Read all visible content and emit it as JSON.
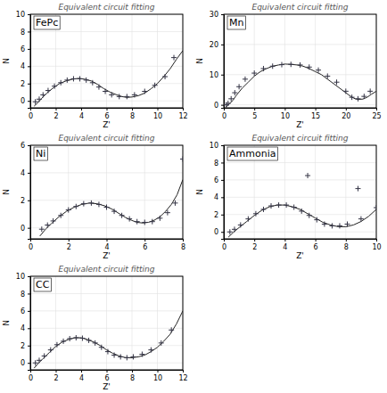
{
  "chart_data": [
    {
      "type": "line",
      "title": "Equivalent circuit fitting",
      "x_label": "Z'",
      "y_label": "N",
      "annotations": [
        "FePc"
      ],
      "xlim": [
        0,
        12
      ],
      "ylim": [
        -0.8,
        10
      ],
      "xticks": [
        0,
        2,
        4,
        6,
        8,
        10,
        12
      ],
      "yticks": [
        0,
        2,
        4,
        6,
        8,
        10
      ],
      "grid": true,
      "series": [
        {
          "type": "line",
          "color": "#222222",
          "line_style": "solid",
          "x": [
            0.3,
            0.6,
            0.9,
            1.3,
            1.8,
            2.3,
            2.8,
            3.3,
            3.8,
            4.3,
            4.8,
            5.3,
            5.8,
            6.3,
            6.8,
            7.2,
            7.6,
            8.0,
            8.5,
            9.0,
            9.5,
            10.0,
            10.5,
            11.0,
            11.5,
            12.0
          ],
          "values": [
            -0.6,
            -0.2,
            0.3,
            0.9,
            1.5,
            2.0,
            2.3,
            2.5,
            2.6,
            2.5,
            2.3,
            1.9,
            1.4,
            1.0,
            0.7,
            0.5,
            0.4,
            0.45,
            0.6,
            0.9,
            1.4,
            2.0,
            2.8,
            3.7,
            4.8,
            5.8
          ]
        },
        {
          "type": "scatter",
          "color": "#333344",
          "marker": "plus",
          "x": [
            0.4,
            0.7,
            1.0,
            1.4,
            1.9,
            2.4,
            2.9,
            3.4,
            3.9,
            4.4,
            4.9,
            5.4,
            5.9,
            6.4,
            7.0,
            7.6,
            8.2,
            9.0,
            9.8,
            10.6,
            11.3
          ],
          "values": [
            -0.1,
            0.2,
            0.7,
            1.2,
            1.7,
            2.1,
            2.4,
            2.55,
            2.55,
            2.4,
            2.1,
            1.6,
            1.1,
            0.7,
            0.5,
            0.5,
            0.7,
            1.1,
            1.8,
            2.8,
            5.0
          ]
        }
      ]
    },
    {
      "type": "line",
      "title": "Equivalent circuit fitting",
      "x_label": "Z'",
      "y_label": "N",
      "annotations": [
        "Mn"
      ],
      "xlim": [
        0,
        25
      ],
      "ylim": [
        -1,
        30
      ],
      "xticks": [
        0,
        5,
        10,
        15,
        20,
        25
      ],
      "yticks": [
        0,
        10,
        20,
        30
      ],
      "grid": true,
      "series": [
        {
          "type": "line",
          "color": "#222222",
          "line_style": "solid",
          "x": [
            0.3,
            0.6,
            1.0,
            1.5,
            2.0,
            3.0,
            4.0,
            5.0,
            6.0,
            7.0,
            8.0,
            9.0,
            10.0,
            11.0,
            12.0,
            13.0,
            14.0,
            15.0,
            16.0,
            17.0,
            18.0,
            19.0,
            20.0,
            20.8,
            21.5,
            22.0,
            22.8,
            23.5,
            24.2,
            25.0
          ],
          "values": [
            -0.8,
            -0.3,
            0.5,
            1.5,
            3.0,
            5.5,
            7.5,
            9.5,
            11.0,
            12.0,
            12.8,
            13.2,
            13.5,
            13.4,
            13.2,
            12.8,
            12.0,
            11.0,
            10.0,
            8.5,
            7.0,
            5.5,
            4.0,
            2.8,
            2.0,
            1.8,
            1.9,
            2.5,
            3.5,
            4.5
          ]
        },
        {
          "type": "scatter",
          "color": "#333344",
          "marker": "plus",
          "x": [
            0.4,
            0.7,
            1.2,
            1.8,
            2.5,
            3.5,
            5.0,
            6.5,
            8.0,
            9.5,
            11.0,
            12.5,
            14.0,
            15.5,
            17.0,
            18.5,
            20.0,
            21.0,
            22.0,
            23.0,
            24.0
          ],
          "values": [
            0.0,
            0.5,
            2.0,
            4.0,
            6.0,
            8.5,
            10.5,
            12.0,
            12.8,
            13.3,
            13.4,
            13.2,
            12.5,
            11.5,
            9.5,
            7.5,
            4.5,
            2.5,
            2.0,
            2.8,
            4.5
          ]
        }
      ]
    },
    {
      "type": "line",
      "title": "Equivalent circuit fitting",
      "x_label": "Z'",
      "y_label": "N",
      "annotations": [
        "Ni"
      ],
      "xlim": [
        0,
        8
      ],
      "ylim": [
        -0.8,
        6
      ],
      "xticks": [
        0,
        2,
        4,
        6,
        8
      ],
      "yticks": [
        0,
        2,
        4,
        6
      ],
      "grid": true,
      "series": [
        {
          "type": "line",
          "color": "#222222",
          "line_style": "solid",
          "x": [
            0.5,
            0.8,
            1.1,
            1.5,
            1.9,
            2.3,
            2.7,
            3.1,
            3.5,
            3.9,
            4.3,
            4.7,
            5.0,
            5.3,
            5.6,
            5.9,
            6.2,
            6.5,
            6.8,
            7.1,
            7.4,
            7.7,
            8.0
          ],
          "values": [
            -0.6,
            -0.1,
            0.3,
            0.8,
            1.2,
            1.5,
            1.7,
            1.8,
            1.75,
            1.6,
            1.35,
            1.0,
            0.75,
            0.55,
            0.4,
            0.35,
            0.4,
            0.55,
            0.8,
            1.2,
            1.7,
            2.4,
            3.5
          ]
        },
        {
          "type": "scatter",
          "color": "#333344",
          "marker": "plus",
          "x": [
            0.6,
            0.9,
            1.2,
            1.6,
            2.0,
            2.4,
            2.8,
            3.2,
            3.6,
            4.0,
            4.4,
            4.8,
            5.2,
            5.6,
            6.0,
            6.4,
            6.8,
            7.2,
            7.6,
            8.0
          ],
          "values": [
            -0.1,
            0.2,
            0.5,
            0.9,
            1.3,
            1.55,
            1.75,
            1.8,
            1.7,
            1.5,
            1.2,
            0.9,
            0.65,
            0.45,
            0.4,
            0.45,
            0.7,
            1.1,
            1.8,
            5.0
          ]
        }
      ]
    },
    {
      "type": "line",
      "title": "Equivalent circuit fitting",
      "x_label": "Z'",
      "y_label": "N",
      "annotations": [
        "Ammonia"
      ],
      "xlim": [
        0,
        10
      ],
      "ylim": [
        -0.8,
        10
      ],
      "xticks": [
        0,
        2,
        4,
        6,
        8,
        10
      ],
      "yticks": [
        0,
        2,
        4,
        6,
        8,
        10
      ],
      "grid": true,
      "series": [
        {
          "type": "line",
          "color": "#222222",
          "line_style": "solid",
          "x": [
            0.3,
            0.6,
            1.0,
            1.5,
            2.0,
            2.5,
            3.0,
            3.5,
            4.0,
            4.5,
            5.0,
            5.5,
            6.0,
            6.5,
            7.0,
            7.5,
            8.0,
            8.5,
            9.0,
            9.5,
            10.0
          ],
          "values": [
            -0.6,
            -0.1,
            0.5,
            1.2,
            1.9,
            2.5,
            2.9,
            3.1,
            3.1,
            2.9,
            2.6,
            2.1,
            1.6,
            1.1,
            0.8,
            0.6,
            0.6,
            0.8,
            1.2,
            1.8,
            2.6
          ]
        },
        {
          "type": "scatter",
          "color": "#333344",
          "marker": "plus",
          "x": [
            0.4,
            0.7,
            1.1,
            1.6,
            2.1,
            2.6,
            3.1,
            3.6,
            4.1,
            4.6,
            5.1,
            5.6,
            6.1,
            6.6,
            7.1,
            7.6,
            8.1,
            9.0,
            10.0
          ],
          "values": [
            0.0,
            0.3,
            0.8,
            1.5,
            2.1,
            2.6,
            3.0,
            3.1,
            3.1,
            2.85,
            2.4,
            1.9,
            1.4,
            0.9,
            0.7,
            0.7,
            0.9,
            1.5,
            2.8
          ]
        },
        {
          "type": "scatter",
          "color": "#333344",
          "marker": "plus",
          "x": [
            5.5,
            8.8
          ],
          "values": [
            6.5,
            5.0
          ]
        }
      ]
    },
    {
      "type": "line",
      "title": "Equivalent circuit fitting",
      "x_label": "Z'",
      "y_label": "N",
      "annotations": [
        "CC"
      ],
      "xlim": [
        0,
        12
      ],
      "ylim": [
        -0.8,
        10
      ],
      "xticks": [
        0,
        2,
        4,
        6,
        8,
        10,
        12
      ],
      "yticks": [
        0,
        2,
        4,
        6,
        8,
        10
      ],
      "grid": true,
      "series": [
        {
          "type": "line",
          "color": "#222222",
          "line_style": "solid",
          "x": [
            0.3,
            0.6,
            1.0,
            1.5,
            2.0,
            2.5,
            3.0,
            3.5,
            4.0,
            4.5,
            5.0,
            5.5,
            6.0,
            6.5,
            7.0,
            7.5,
            8.0,
            8.5,
            9.0,
            9.5,
            10.0,
            10.5,
            11.0,
            11.5,
            12.0
          ],
          "values": [
            -0.6,
            -0.1,
            0.5,
            1.2,
            1.9,
            2.4,
            2.7,
            2.9,
            2.9,
            2.7,
            2.4,
            2.0,
            1.5,
            1.1,
            0.8,
            0.6,
            0.6,
            0.7,
            0.9,
            1.3,
            1.8,
            2.5,
            3.3,
            4.5,
            6.0
          ]
        },
        {
          "type": "scatter",
          "color": "#333344",
          "marker": "plus",
          "x": [
            0.4,
            0.7,
            1.1,
            1.6,
            2.1,
            2.6,
            3.1,
            3.6,
            4.1,
            4.6,
            5.1,
            5.6,
            6.1,
            6.6,
            7.1,
            7.6,
            8.1,
            8.8,
            9.5,
            10.3,
            11.1
          ],
          "values": [
            0.0,
            0.3,
            0.8,
            1.5,
            2.1,
            2.5,
            2.8,
            2.9,
            2.85,
            2.6,
            2.3,
            1.8,
            1.3,
            0.9,
            0.7,
            0.6,
            0.7,
            1.0,
            1.5,
            2.3,
            3.8
          ]
        }
      ]
    }
  ]
}
